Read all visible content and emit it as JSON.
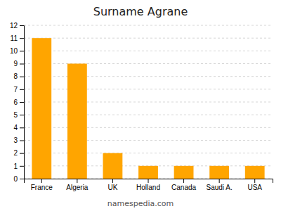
{
  "chart_data": {
    "type": "bar",
    "title": "Surname Agrane",
    "categories": [
      "France",
      "Algeria",
      "UK",
      "Holland",
      "Canada",
      "Saudi A.",
      "USA"
    ],
    "values": [
      11,
      9,
      2,
      1,
      1,
      1,
      1
    ],
    "color": "#FFA500",
    "ylim": [
      0,
      12
    ],
    "yticks": [
      0,
      1,
      2,
      3,
      4,
      5,
      6,
      7,
      8,
      9,
      10,
      11,
      12
    ],
    "grid": true,
    "annotations": [
      "namespedia.com"
    ]
  }
}
